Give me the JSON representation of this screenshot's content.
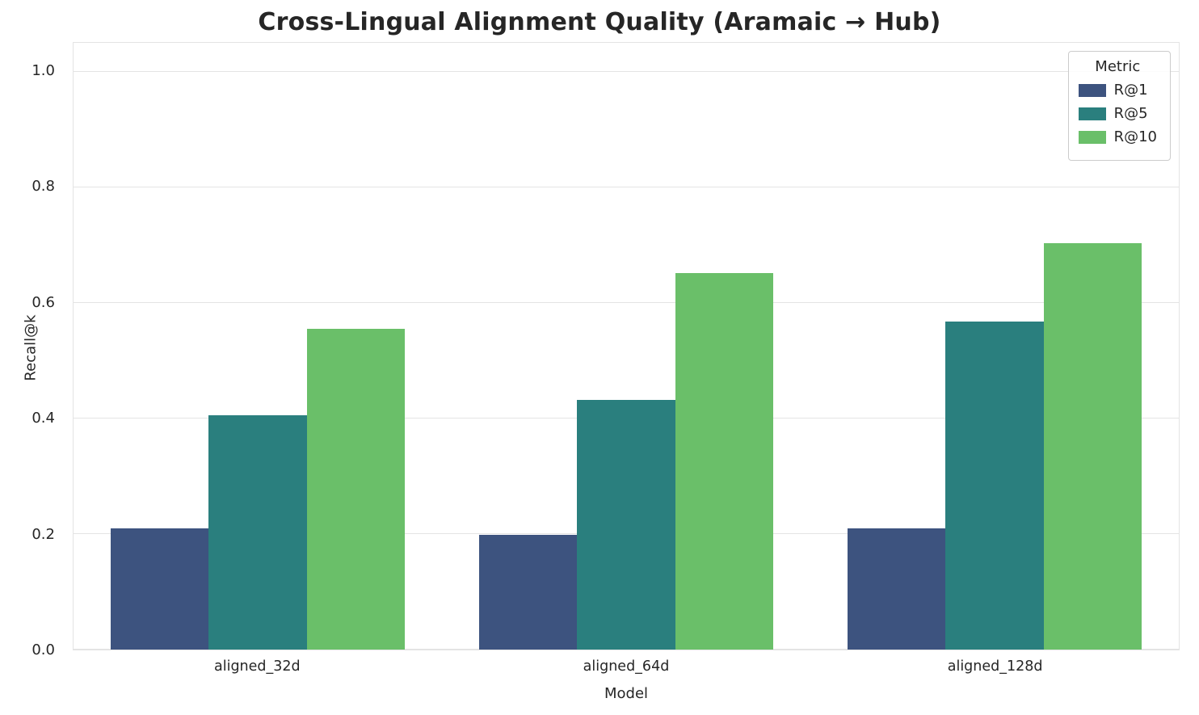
{
  "chart_data": {
    "type": "bar",
    "title": "Cross-Lingual Alignment Quality (Aramaic → Hub)",
    "xlabel": "Model",
    "ylabel": "Recall@k",
    "categories": [
      "aligned_32d",
      "aligned_64d",
      "aligned_128d"
    ],
    "series": [
      {
        "name": "R@1",
        "color": "#3d537f",
        "values": [
          0.21,
          0.198,
          0.21
        ]
      },
      {
        "name": "R@5",
        "color": "#2a7f7e",
        "values": [
          0.406,
          0.432,
          0.567
        ]
      },
      {
        "name": "R@10",
        "color": "#6abf69",
        "values": [
          0.555,
          0.652,
          0.703
        ]
      }
    ],
    "ylim": [
      0.0,
      1.05
    ],
    "yticks": [
      0.0,
      0.2,
      0.4,
      0.6,
      0.8,
      1.0
    ],
    "grid": true,
    "legend_title": "Metric",
    "legend_position": "upper right"
  }
}
